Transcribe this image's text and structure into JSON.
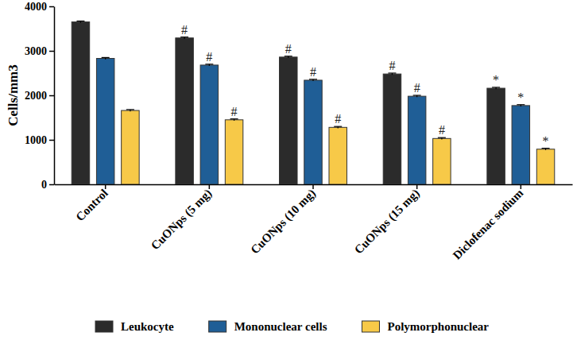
{
  "chart_data": {
    "type": "bar",
    "y_label": "Cells/mm3",
    "categories": [
      "Control",
      "CuONps (5 mg)",
      "CuONps (10 mg)",
      "CuONps (15 mg)",
      "Diclofenac sodium"
    ],
    "series": [
      {
        "name": "Leukocyte",
        "color": "#2b2b2b",
        "values": [
          3650,
          3290,
          2860,
          2480,
          2160
        ],
        "errors": [
          20,
          20,
          20,
          20,
          20
        ],
        "annotations": [
          null,
          "#",
          "#",
          "#",
          "*"
        ]
      },
      {
        "name": "Mononuclear cells",
        "color": "#1f5e96",
        "values": [
          2830,
          2680,
          2340,
          1980,
          1770
        ],
        "errors": [
          20,
          20,
          20,
          20,
          20
        ],
        "annotations": [
          null,
          "#",
          "#",
          "#",
          "*"
        ]
      },
      {
        "name": "Polymorphonuclear",
        "color": "#f7c948",
        "values": [
          1660,
          1450,
          1280,
          1030,
          790
        ],
        "errors": [
          20,
          20,
          20,
          20,
          20
        ],
        "annotations": [
          null,
          "#",
          "#",
          "#",
          "*"
        ]
      }
    ],
    "ylim": [
      0,
      4000
    ],
    "yticks": [
      0,
      1000,
      2000,
      3000,
      4000
    ],
    "legend": "bottom"
  }
}
